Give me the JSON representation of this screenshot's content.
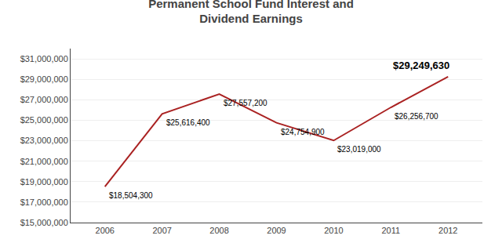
{
  "chart_data": {
    "type": "line",
    "title": "Permanent School Fund Interest and\nDividend Earnings",
    "x": [
      2006,
      2007,
      2008,
      2009,
      2010,
      2011,
      2012
    ],
    "values": [
      18504300,
      25616400,
      27557200,
      24754900,
      23019000,
      26256700,
      29249630
    ],
    "value_labels": [
      "$18,504,300",
      "$25,616,400",
      "$27,557,200",
      "$24,754,900",
      "$23,019,000",
      "$26,256,700",
      "$29,249,630"
    ],
    "data_labels": true,
    "color": "#aa2222",
    "xlim": [
      2005.4,
      2012.6
    ],
    "xticks": [
      2006,
      2007,
      2008,
      2009,
      2010,
      2011,
      2012
    ],
    "ylim": [
      15000000,
      32000000
    ],
    "yticks": [
      {
        "value": 15000000,
        "label": "$15,000,000"
      },
      {
        "value": 17000000,
        "label": "$17,000,000"
      },
      {
        "value": 19000000,
        "label": "$19,000,000"
      },
      {
        "value": 21000000,
        "label": "$21,000,000"
      },
      {
        "value": 23000000,
        "label": "$23,000,000"
      },
      {
        "value": 25000000,
        "label": "$25,000,000"
      },
      {
        "value": 27000000,
        "label": "$27,000,000"
      },
      {
        "value": 29000000,
        "label": "$29,000,000"
      },
      {
        "value": 31000000,
        "label": "$31,000,000"
      }
    ],
    "grid": "y"
  }
}
